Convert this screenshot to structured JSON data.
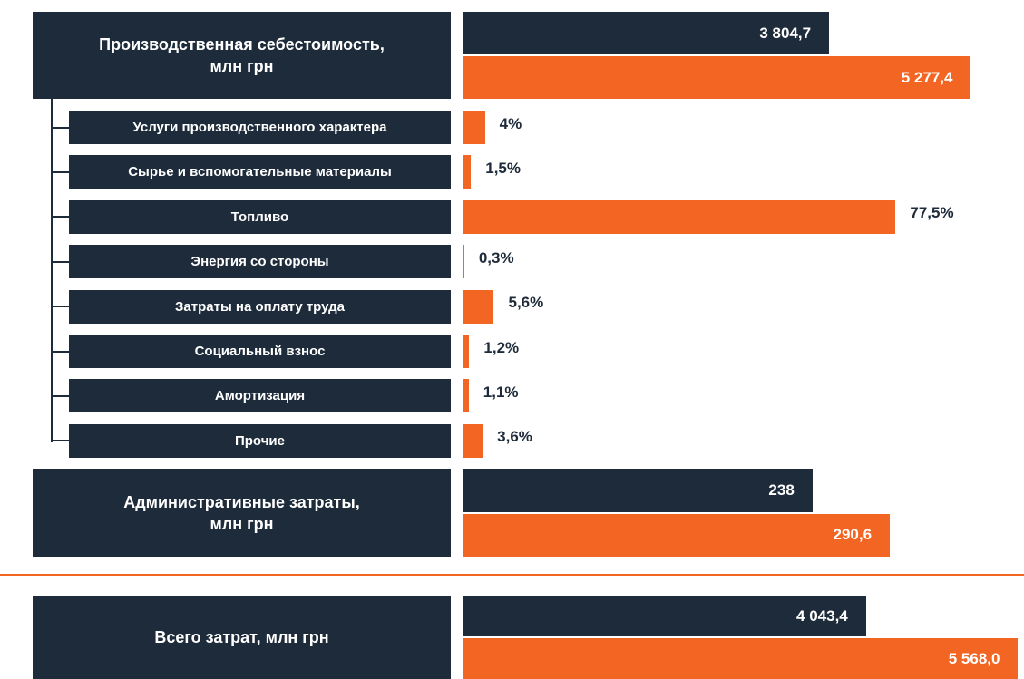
{
  "chart_data": [
    {
      "type": "bar",
      "categories": [
        "Производственная себестоимость,\nмлн грн"
      ],
      "xlim": [
        0,
        5800
      ],
      "series": [
        {
          "color": "#1e2b3a",
          "values": [
            3804.7
          ],
          "value_labels": [
            "3 804,7"
          ]
        },
        {
          "color": "#f26522",
          "values": [
            5277.4
          ],
          "value_labels": [
            "5 277,4"
          ]
        }
      ]
    },
    {
      "type": "bar",
      "categories": [
        "Услуги производственного характера",
        "Сырье и вспомогательные материалы",
        "Топливо",
        "Энергия со стороны",
        "Затраты на оплату труда",
        "Социальный взнос",
        "Амортизация",
        "Прочие"
      ],
      "xlim": [
        0,
        100
      ],
      "color": "#f26522",
      "values": [
        4,
        1.5,
        77.5,
        0.3,
        5.6,
        1.2,
        1.1,
        3.6
      ],
      "value_labels": [
        "4%",
        "1,5%",
        "77,5%",
        "0,3%",
        "5,6%",
        "1,2%",
        "1,1%",
        "3,6%"
      ]
    },
    {
      "type": "bar",
      "categories": [
        "Административные затраты,\nмлн грн"
      ],
      "xlim": [
        0,
        380
      ],
      "series": [
        {
          "color": "#1e2b3a",
          "values": [
            238
          ],
          "value_labels": [
            "238"
          ]
        },
        {
          "color": "#f26522",
          "values": [
            290.6
          ],
          "value_labels": [
            "290,6"
          ]
        }
      ]
    },
    {
      "type": "bar",
      "categories": [
        "Всего затрат, млн грн"
      ],
      "xlim": [
        0,
        5600
      ],
      "series": [
        {
          "color": "#1e2b3a",
          "values": [
            4043.4
          ],
          "value_labels": [
            "4 043,4"
          ]
        },
        {
          "color": "#f26522",
          "values": [
            5568.0
          ],
          "value_labels": [
            "5 568,0"
          ]
        }
      ]
    }
  ]
}
